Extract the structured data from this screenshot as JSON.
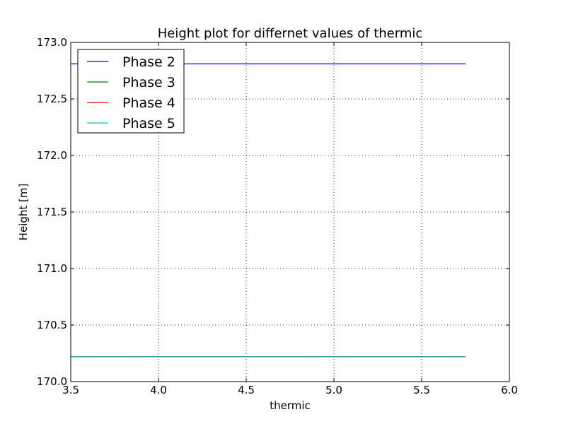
{
  "chart_data": {
    "type": "line",
    "title": "Height plot for differnet values of thermic",
    "xlabel": "thermic",
    "ylabel": "Height [m]",
    "xlim": [
      3.5,
      6.0
    ],
    "ylim": [
      170.0,
      173.0
    ],
    "xticks": [
      3.5,
      4.0,
      4.5,
      5.0,
      5.5,
      6.0
    ],
    "xtick_labels": [
      "3.5",
      "4.0",
      "4.5",
      "5.0",
      "5.5",
      "6.0"
    ],
    "yticks": [
      170.0,
      170.5,
      171.0,
      171.5,
      172.0,
      172.5,
      173.0
    ],
    "ytick_labels": [
      "170.0",
      "170.5",
      "171.0",
      "171.5",
      "172.0",
      "172.5",
      "173.0"
    ],
    "grid": true,
    "legend_position": "top-left",
    "series": [
      {
        "name": "Phase 2",
        "color": "#0000ff",
        "x": [
          3.5,
          5.75
        ],
        "y": [
          172.81,
          172.81
        ]
      },
      {
        "name": "Phase 3",
        "color": "#008000",
        "x": [
          3.5,
          5.75
        ],
        "y": [
          170.22,
          170.22
        ]
      },
      {
        "name": "Phase 4",
        "color": "#ff0000",
        "x": [
          3.5,
          5.75
        ],
        "y": [
          170.22,
          170.22
        ]
      },
      {
        "name": "Phase 5",
        "color": "#00bfbf",
        "x": [
          3.5,
          5.75
        ],
        "y": [
          170.22,
          170.22
        ]
      }
    ]
  }
}
